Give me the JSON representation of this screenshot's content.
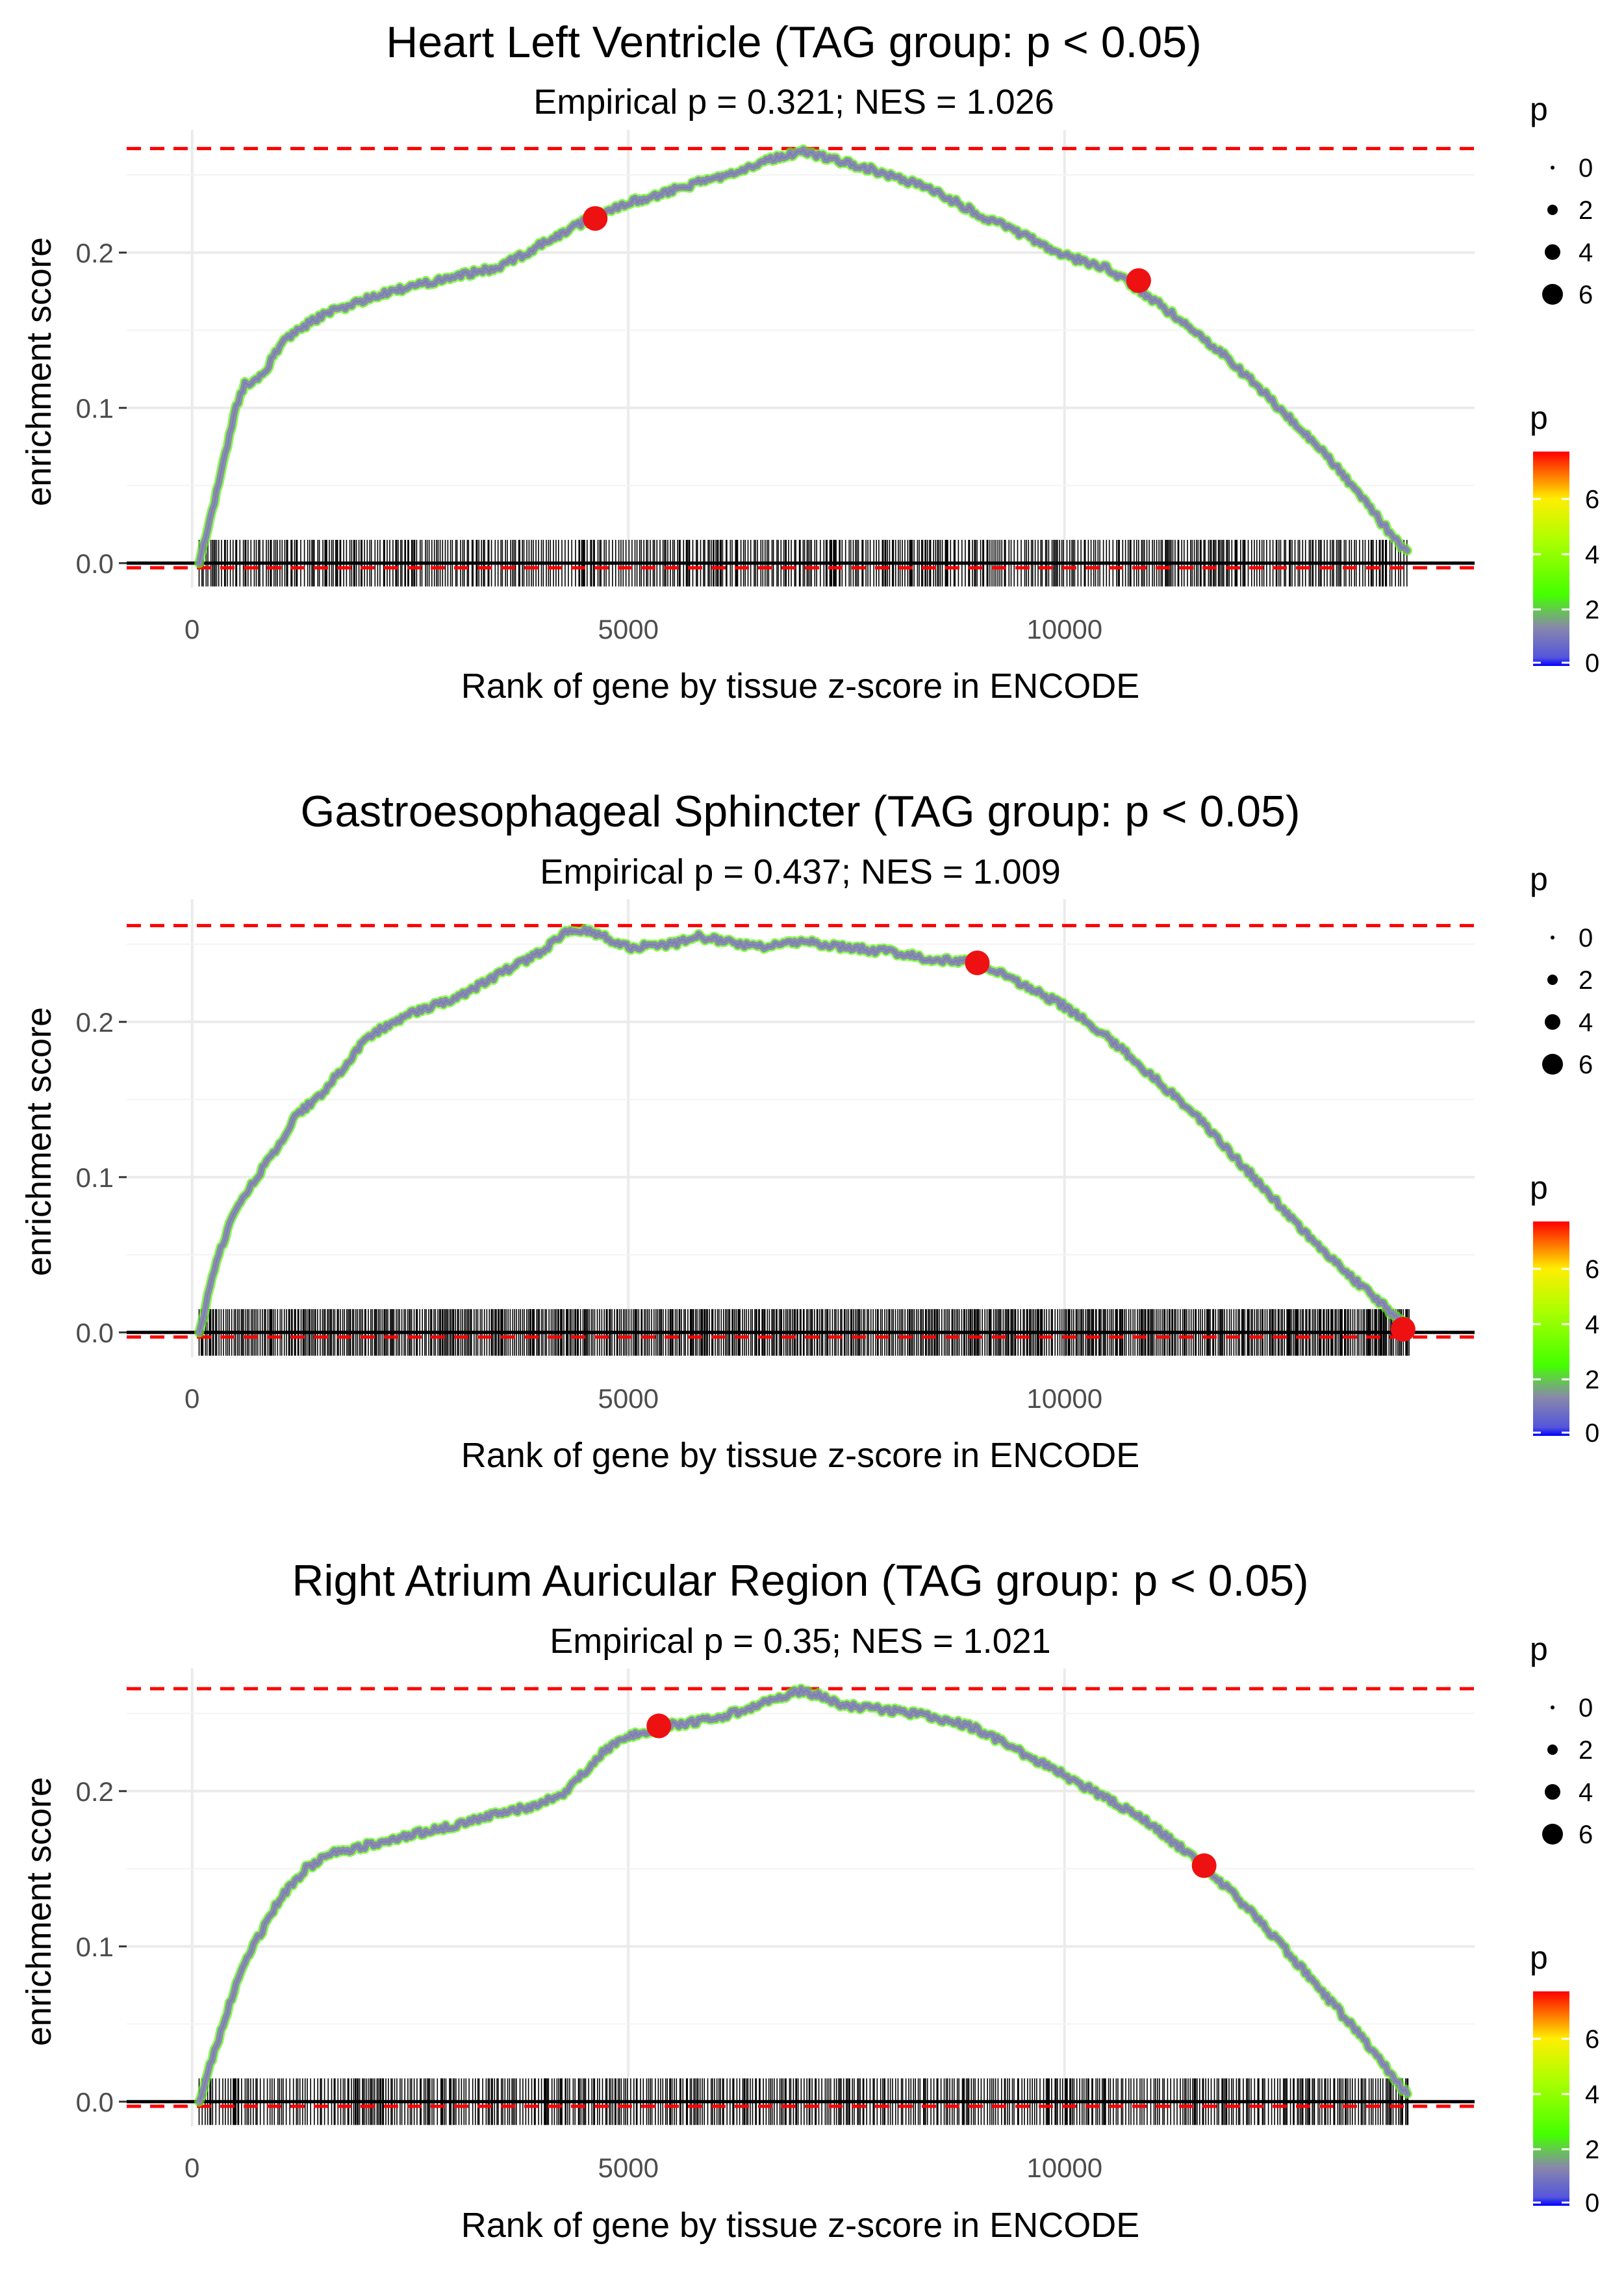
{
  "chart_data": [
    {
      "type": "line",
      "title": "Heart Left Ventricle (TAG group: p < 0.05)",
      "subtitle": "Empirical p = 0.321; NES = 1.026",
      "xlabel": "Rank of gene by tissue z-score in ENCODE",
      "ylabel": "enrichment score",
      "xlim": [
        -750,
        14700
      ],
      "ylim": [
        -0.016,
        0.279
      ],
      "x_ticks": [
        0,
        5000,
        10000
      ],
      "x_tick_labels": [
        "0",
        "5000",
        "10000"
      ],
      "y_ticks": [
        0.0,
        0.1,
        0.2
      ],
      "y_tick_labels": [
        "0.0",
        "0.1",
        "0.2"
      ],
      "max_es": 0.267,
      "min_es": -0.003,
      "rug_range": [
        80,
        13950
      ],
      "series": [
        {
          "name": "enrichment score",
          "x": [
            80,
            300,
            500,
            600,
            800,
            1000,
            1200,
            1500,
            2000,
            2500,
            3000,
            3500,
            4000,
            4500,
            5000,
            5500,
            6000,
            6500,
            7000,
            7500,
            8000,
            8500,
            9000,
            9500,
            10000,
            10500,
            11000,
            11500,
            12000,
            12500,
            13000,
            13500,
            13800,
            13950
          ],
          "y": [
            0.0,
            0.05,
            0.1,
            0.115,
            0.12,
            0.14,
            0.15,
            0.16,
            0.17,
            0.178,
            0.185,
            0.19,
            0.205,
            0.22,
            0.232,
            0.24,
            0.248,
            0.258,
            0.265,
            0.258,
            0.25,
            0.24,
            0.225,
            0.212,
            0.198,
            0.19,
            0.17,
            0.15,
            0.125,
            0.098,
            0.07,
            0.035,
            0.015,
            0.005
          ]
        }
      ],
      "highlights": [
        {
          "x": 4620,
          "y": 0.222,
          "p": 7
        },
        {
          "x": 10850,
          "y": 0.182,
          "p": 7
        }
      ]
    },
    {
      "type": "line",
      "title": "Gastroesophageal Sphincter (TAG group: p < 0.05)",
      "subtitle": "Empirical p = 0.437; NES = 1.009",
      "xlabel": "Rank of gene by tissue z-score in ENCODE",
      "ylabel": "enrichment score",
      "xlim": [
        -750,
        14700
      ],
      "ylim": [
        -0.016,
        0.279
      ],
      "x_ticks": [
        0,
        5000,
        10000
      ],
      "x_tick_labels": [
        "0",
        "5000",
        "10000"
      ],
      "y_ticks": [
        0.0,
        0.1,
        0.2
      ],
      "y_tick_labels": [
        "0.0",
        "0.1",
        "0.2"
      ],
      "max_es": 0.262,
      "min_es": -0.003,
      "rug_range": [
        80,
        13950
      ],
      "series": [
        {
          "name": "enrichment score",
          "x": [
            80,
            300,
            500,
            800,
            1000,
            1200,
            1500,
            1800,
            2000,
            2500,
            3000,
            3500,
            4000,
            4300,
            4500,
            5000,
            5500,
            5800,
            6500,
            7000,
            7500,
            8000,
            8500,
            9000,
            9500,
            10000,
            10500,
            11000,
            11500,
            12000,
            12500,
            13000,
            13500,
            13950
          ],
          "y": [
            0.0,
            0.05,
            0.08,
            0.105,
            0.12,
            0.14,
            0.155,
            0.175,
            0.19,
            0.205,
            0.215,
            0.23,
            0.245,
            0.258,
            0.26,
            0.248,
            0.25,
            0.255,
            0.248,
            0.252,
            0.248,
            0.245,
            0.24,
            0.238,
            0.225,
            0.21,
            0.19,
            0.165,
            0.14,
            0.11,
            0.08,
            0.05,
            0.025,
            0.003
          ]
        }
      ],
      "highlights": [
        {
          "x": 9000,
          "y": 0.238,
          "p": 7
        },
        {
          "x": 13880,
          "y": 0.002,
          "p": 7
        }
      ]
    },
    {
      "type": "line",
      "title": "Right Atrium Auricular Region (TAG group: p < 0.05)",
      "subtitle": "Empirical p = 0.35; NES = 1.021",
      "xlabel": "Rank of gene by tissue z-score in ENCODE",
      "ylabel": "enrichment score",
      "xlim": [
        -750,
        14700
      ],
      "ylim": [
        -0.016,
        0.279
      ],
      "x_ticks": [
        0,
        5000,
        10000
      ],
      "x_tick_labels": [
        "0",
        "5000",
        "10000"
      ],
      "y_ticks": [
        0.0,
        0.1,
        0.2
      ],
      "y_tick_labels": [
        "0.0",
        "0.1",
        "0.2"
      ],
      "max_es": 0.266,
      "min_es": -0.003,
      "rug_range": [
        80,
        13950
      ],
      "series": [
        {
          "name": "enrichment score",
          "x": [
            80,
            300,
            500,
            700,
            1000,
            1300,
            1600,
            2000,
            2500,
            3000,
            3500,
            4000,
            4300,
            4700,
            5000,
            5400,
            5800,
            6200,
            6600,
            7000,
            7500,
            8000,
            8500,
            9000,
            9500,
            10000,
            10500,
            11000,
            11600,
            12000,
            12500,
            13000,
            13500,
            13950
          ],
          "y": [
            0.0,
            0.04,
            0.075,
            0.1,
            0.13,
            0.15,
            0.16,
            0.165,
            0.172,
            0.178,
            0.185,
            0.192,
            0.2,
            0.225,
            0.235,
            0.242,
            0.245,
            0.25,
            0.258,
            0.265,
            0.255,
            0.252,
            0.248,
            0.24,
            0.225,
            0.21,
            0.195,
            0.178,
            0.152,
            0.13,
            0.1,
            0.068,
            0.035,
            0.003
          ]
        }
      ],
      "highlights": [
        {
          "x": 5350,
          "y": 0.242,
          "p": 7
        },
        {
          "x": 11600,
          "y": 0.152,
          "p": 7
        }
      ]
    }
  ],
  "legends": [
    {
      "size_title": "p",
      "size_labels": [
        "0",
        "2",
        "4",
        "6"
      ],
      "color_title": "p",
      "color_labels": [
        "6",
        "4",
        "2",
        "0"
      ]
    },
    {
      "size_title": "p",
      "size_labels": [
        "0",
        "2",
        "4",
        "6"
      ],
      "color_title": "p",
      "color_labels": [
        "6",
        "4",
        "2",
        "0"
      ]
    },
    {
      "size_title": "p",
      "size_labels": [
        "0",
        "2",
        "4",
        "6"
      ],
      "color_title": "p",
      "color_labels": [
        "6",
        "4",
        "2",
        "0"
      ]
    }
  ],
  "colors": {
    "line": "#8a8fa8",
    "line_green": "#55ff00",
    "highlight": "#ee1111",
    "dashed": "#ff0000",
    "grid": "#ebebeb",
    "gradient_top": "#ff0000",
    "gradient_upper": "#ffff00",
    "gradient_mid": "#44ff00",
    "gradient_low": "#8888aa",
    "gradient_bottom": "#0000ff"
  }
}
